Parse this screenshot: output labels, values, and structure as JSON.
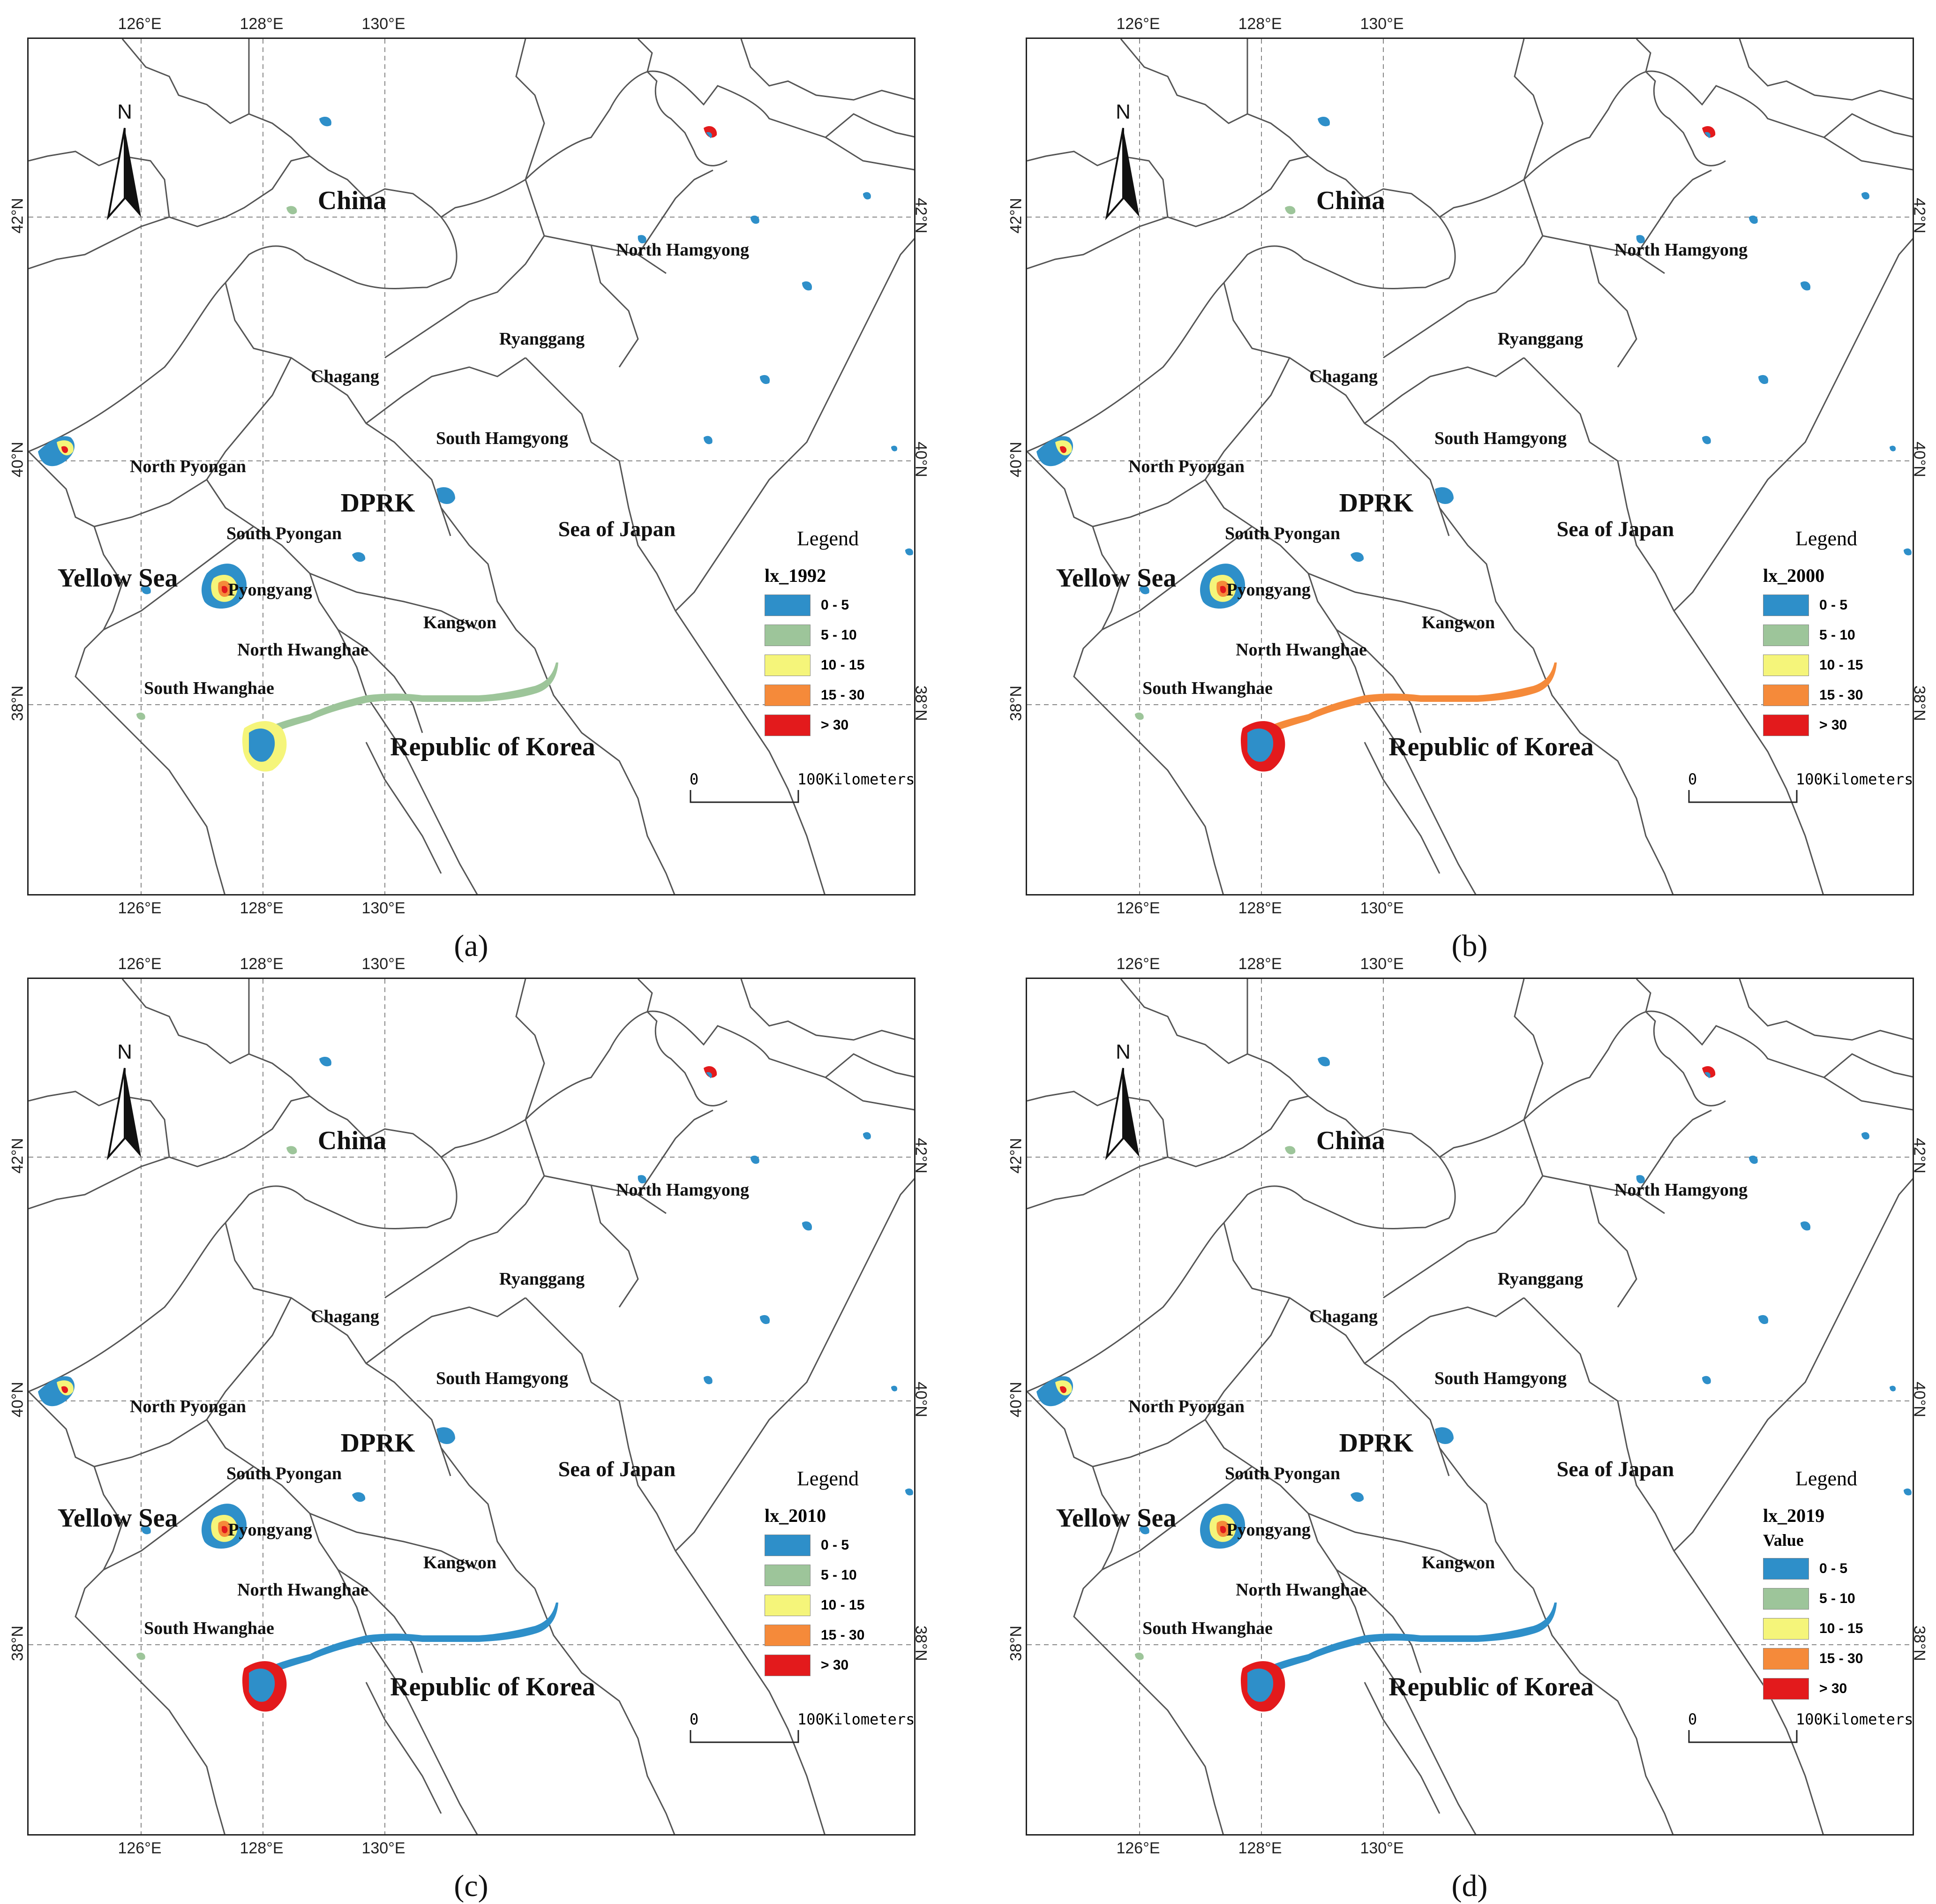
{
  "figure": {
    "panels": [
      {
        "caption": "(a)",
        "legend_field": "lx_1992",
        "legend_subtitle": "",
        "coastal_style": "light"
      },
      {
        "caption": "(b)",
        "legend_field": "lx_2000",
        "legend_subtitle": "",
        "coastal_style": "orange"
      },
      {
        "caption": "(c)",
        "legend_field": "lx_2010",
        "legend_subtitle": "",
        "coastal_style": "mixed"
      },
      {
        "caption": "(d)",
        "legend_field": "lx_2019",
        "legend_subtitle": "Value",
        "coastal_style": "mixed"
      }
    ],
    "axes": {
      "top_labels": [
        "126°E",
        "128°E",
        "130°E"
      ],
      "bottom_labels": [
        "126°E",
        "128°E",
        "130°E"
      ],
      "left_labels": [
        "42°N",
        "40°N",
        "38°N"
      ],
      "right_labels": [
        "42°N",
        "40°N",
        "38°N"
      ]
    },
    "place_labels": {
      "china": "China",
      "dprk": "DPRK",
      "rok": "Republic of Korea",
      "yellow_sea": "Yellow Sea",
      "sea_of_japan": "Sea of Japan",
      "north_hamgyong": "North Hamgyong",
      "ryanggang": "Ryanggang",
      "chagang": "Chagang",
      "south_hamgyong": "South Hamgyong",
      "north_pyongan": "North Pyongan",
      "south_pyongan": "South Pyongan",
      "pyongyang": "Pyongyang",
      "kangwon": "Kangwon",
      "north_hwanghae": "North Hwanghae",
      "south_hwanghae": "South Hwanghae"
    },
    "north_arrow": {
      "letter": "N",
      "icon": "north-arrow-icon"
    },
    "legend": {
      "title": "Legend",
      "classes": [
        {
          "label": "0 - 5",
          "color": "#2e8fc9"
        },
        {
          "label": "5 - 10",
          "color": "#9dc59a"
        },
        {
          "label": "10 - 15",
          "color": "#f5f57a"
        },
        {
          "label": "15 - 30",
          "color": "#f58a3a"
        },
        {
          "label": "> 30",
          "color": "#e31a1c"
        }
      ]
    },
    "scale_bar": {
      "start": "0",
      "end": "100Kilometers"
    }
  }
}
